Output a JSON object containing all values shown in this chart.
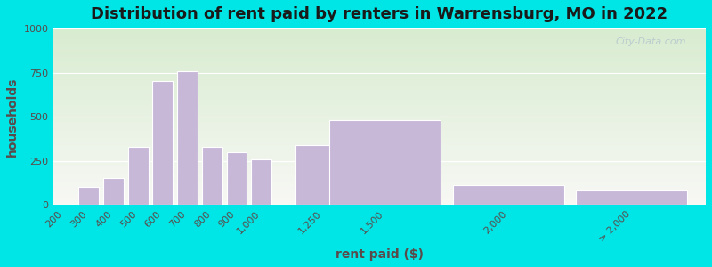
{
  "title": "Distribution of rent paid by renters in Warrensburg, MO in 2022",
  "xlabel": "rent paid ($)",
  "ylabel": "households",
  "bar_labels": [
    "200",
    "300",
    "400",
    "500",
    "600",
    "700",
    "800",
    "900",
    "1,000",
    "1,250",
    "1,500",
    "2,000",
    "> 2,000"
  ],
  "bar_values": [
    0,
    100,
    150,
    330,
    700,
    760,
    330,
    300,
    260,
    340,
    480,
    110,
    80
  ],
  "bar_positions": [
    200,
    300,
    400,
    500,
    600,
    700,
    800,
    900,
    1000,
    1250,
    1500,
    2000,
    2500
  ],
  "bar_widths": [
    90,
    90,
    90,
    90,
    90,
    90,
    90,
    90,
    90,
    240,
    490,
    490,
    490
  ],
  "bar_color": "#c8b8d8",
  "bar_edge_color": "#ffffff",
  "ylim": [
    0,
    1000
  ],
  "yticks": [
    0,
    250,
    500,
    750,
    1000
  ],
  "xlim_left": 155,
  "xlim_right": 2800,
  "bg_outer": "#00e5e5",
  "bg_plot_top": "#d8ecd0",
  "bg_plot_bottom": "#f8f8f5",
  "title_color": "#1a1a1a",
  "axis_label_color": "#5a4a4a",
  "tick_label_color": "#5a4a4a",
  "watermark_text": "City-Data.com",
  "title_fontsize": 13,
  "label_fontsize": 10,
  "tick_fontsize": 8
}
